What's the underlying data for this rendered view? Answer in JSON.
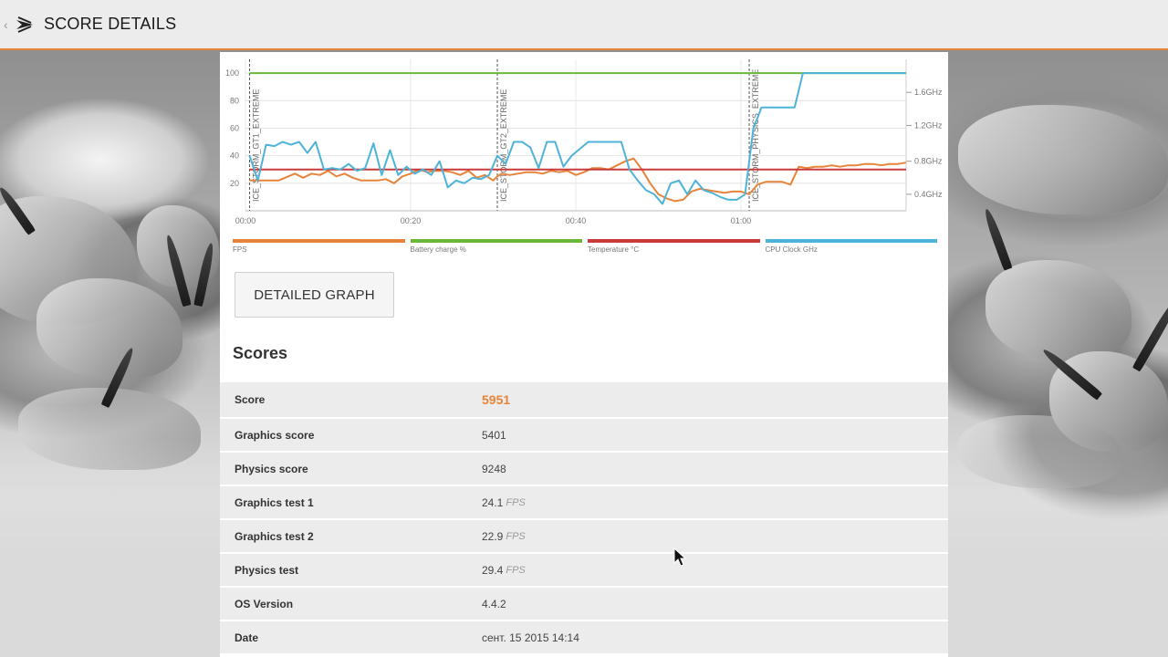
{
  "header": {
    "title": "SCORE DETAILS",
    "accent_color": "#e8833a"
  },
  "chart_data": {
    "type": "line",
    "x": [
      "00:00",
      "00:20",
      "00:40",
      "01:00"
    ],
    "left_axis_ticks": [
      "100",
      "80",
      "60",
      "40",
      "20"
    ],
    "right_axis_ticks": [
      "1.6GHz",
      "1.2GHz",
      "0.8GHz",
      "0.4GHz"
    ],
    "markers": [
      "ICE_STORM_GT1_EXTREME",
      "ICE_STORM_GT2_EXTREME",
      "ICE_STORM_PHYSICS_EXTREME"
    ],
    "marker_times": [
      0.5,
      30.5,
      61
    ],
    "ylim": [
      0,
      110
    ],
    "xlim": [
      0,
      80
    ],
    "grid": true,
    "series": [
      {
        "name": "FPS",
        "color": "#e8833a",
        "points": [
          [
            0.5,
            22
          ],
          [
            2,
            22
          ],
          [
            4,
            22
          ],
          [
            6,
            27
          ],
          [
            7,
            24
          ],
          [
            8,
            27
          ],
          [
            9,
            26
          ],
          [
            10,
            29
          ],
          [
            11,
            25
          ],
          [
            12,
            27
          ],
          [
            13,
            24
          ],
          [
            14,
            22
          ],
          [
            15,
            22
          ],
          [
            16,
            22
          ],
          [
            17,
            23
          ],
          [
            18,
            20
          ],
          [
            19,
            25
          ],
          [
            20,
            27
          ],
          [
            21,
            30
          ],
          [
            22,
            28
          ],
          [
            23,
            29
          ],
          [
            24,
            29
          ],
          [
            25,
            28
          ],
          [
            26,
            26
          ],
          [
            27,
            29
          ],
          [
            28,
            24
          ],
          [
            29,
            26
          ],
          [
            30,
            22
          ],
          [
            30.5,
            25
          ],
          [
            31,
            27
          ],
          [
            32,
            26
          ],
          [
            33,
            27
          ],
          [
            34,
            28
          ],
          [
            35,
            28
          ],
          [
            36,
            27
          ],
          [
            37,
            29
          ],
          [
            38,
            28
          ],
          [
            39,
            29
          ],
          [
            40,
            26
          ],
          [
            41,
            28
          ],
          [
            42,
            31
          ],
          [
            43,
            31
          ],
          [
            44,
            30
          ],
          [
            45,
            33
          ],
          [
            46,
            36
          ],
          [
            47,
            38
          ],
          [
            48,
            30
          ],
          [
            49,
            20
          ],
          [
            50,
            12
          ],
          [
            51,
            9
          ],
          [
            52,
            7
          ],
          [
            53,
            8
          ],
          [
            54,
            14
          ],
          [
            55,
            16
          ],
          [
            56,
            15
          ],
          [
            57,
            14
          ],
          [
            58,
            13
          ],
          [
            59,
            14
          ],
          [
            60,
            14
          ],
          [
            61,
            12
          ],
          [
            62,
            19
          ],
          [
            63,
            21
          ],
          [
            64,
            21
          ],
          [
            65,
            21
          ],
          [
            66,
            19
          ],
          [
            67,
            32
          ],
          [
            68,
            31
          ],
          [
            69,
            32
          ],
          [
            70,
            32
          ],
          [
            71,
            33
          ],
          [
            72,
            32
          ],
          [
            73,
            33
          ],
          [
            74,
            33
          ],
          [
            75,
            34
          ],
          [
            76,
            34
          ],
          [
            77,
            33
          ],
          [
            78,
            34
          ],
          [
            79,
            34
          ],
          [
            80,
            35
          ]
        ]
      },
      {
        "name": "Battery charge %",
        "color": "#6ab839",
        "points": [
          [
            0.5,
            100
          ],
          [
            80,
            100
          ]
        ]
      },
      {
        "name": "Temperature °C",
        "color": "#c93b3b",
        "points": [
          [
            0.5,
            30
          ],
          [
            80,
            30
          ]
        ]
      },
      {
        "name": "CPU Clock GHz",
        "color": "#4db3d8",
        "points": [
          [
            0.5,
            40
          ],
          [
            1.5,
            22
          ],
          [
            2.5,
            48
          ],
          [
            3.5,
            47
          ],
          [
            4.5,
            50
          ],
          [
            5.5,
            48
          ],
          [
            6.5,
            50
          ],
          [
            7.5,
            42
          ],
          [
            8.5,
            50
          ],
          [
            9.5,
            30
          ],
          [
            10.5,
            31
          ],
          [
            11.5,
            30
          ],
          [
            12.5,
            34
          ],
          [
            13.5,
            29
          ],
          [
            14.5,
            31
          ],
          [
            15.5,
            49
          ],
          [
            16.5,
            26
          ],
          [
            17.5,
            44
          ],
          [
            18.5,
            26
          ],
          [
            19.5,
            32
          ],
          [
            20.5,
            27
          ],
          [
            21.5,
            30
          ],
          [
            22.5,
            26
          ],
          [
            23.5,
            36
          ],
          [
            24.5,
            17
          ],
          [
            25.5,
            22
          ],
          [
            26.5,
            20
          ],
          [
            27.5,
            24
          ],
          [
            28.5,
            23
          ],
          [
            29.5,
            26
          ],
          [
            30.5,
            40
          ],
          [
            31.5,
            34
          ],
          [
            32.5,
            50
          ],
          [
            33.5,
            50
          ],
          [
            34.5,
            46
          ],
          [
            35.5,
            31
          ],
          [
            36.5,
            50
          ],
          [
            37.5,
            50
          ],
          [
            38.5,
            32
          ],
          [
            39.5,
            40
          ],
          [
            40.5,
            45
          ],
          [
            41.5,
            50
          ],
          [
            42.5,
            50
          ],
          [
            43.5,
            50
          ],
          [
            44.5,
            50
          ],
          [
            45.5,
            50
          ],
          [
            46.5,
            30
          ],
          [
            47.5,
            22
          ],
          [
            48.5,
            15
          ],
          [
            49.5,
            12
          ],
          [
            50.5,
            5
          ],
          [
            51.5,
            20
          ],
          [
            52.5,
            22
          ],
          [
            53.5,
            12
          ],
          [
            54.5,
            22
          ],
          [
            55.5,
            15
          ],
          [
            56.5,
            13
          ],
          [
            57.5,
            10
          ],
          [
            58.5,
            8
          ],
          [
            59.5,
            8
          ],
          [
            60.5,
            12
          ],
          [
            61.5,
            60
          ],
          [
            62.5,
            75
          ],
          [
            63.5,
            75
          ],
          [
            64.5,
            75
          ],
          [
            65.5,
            75
          ],
          [
            66.5,
            75
          ],
          [
            67.5,
            100
          ],
          [
            68.5,
            100
          ],
          [
            69.5,
            100
          ],
          [
            80,
            100
          ]
        ]
      }
    ]
  },
  "legend": [
    {
      "label": "FPS",
      "color": "#e8833a"
    },
    {
      "label": "Battery charge %",
      "color": "#6ab839"
    },
    {
      "label": "Temperature °C",
      "color": "#c93b3b"
    },
    {
      "label": "CPU Clock GHz",
      "color": "#4db3d8"
    }
  ],
  "detail_button": "DETAILED GRAPH",
  "scores": {
    "heading": "Scores",
    "rows": [
      {
        "label": "Score",
        "value": "5951",
        "unit": ""
      },
      {
        "label": "Graphics score",
        "value": "5401",
        "unit": ""
      },
      {
        "label": "Physics score",
        "value": "9248",
        "unit": ""
      },
      {
        "label": "Graphics test 1",
        "value": "24.1",
        "unit": "FPS"
      },
      {
        "label": "Graphics test 2",
        "value": "22.9",
        "unit": "FPS"
      },
      {
        "label": "Physics test",
        "value": "29.4",
        "unit": "FPS"
      },
      {
        "label": "OS Version",
        "value": "4.4.2",
        "unit": ""
      },
      {
        "label": "Date",
        "value": "сент. 15 2015 14:14",
        "unit": ""
      }
    ]
  }
}
